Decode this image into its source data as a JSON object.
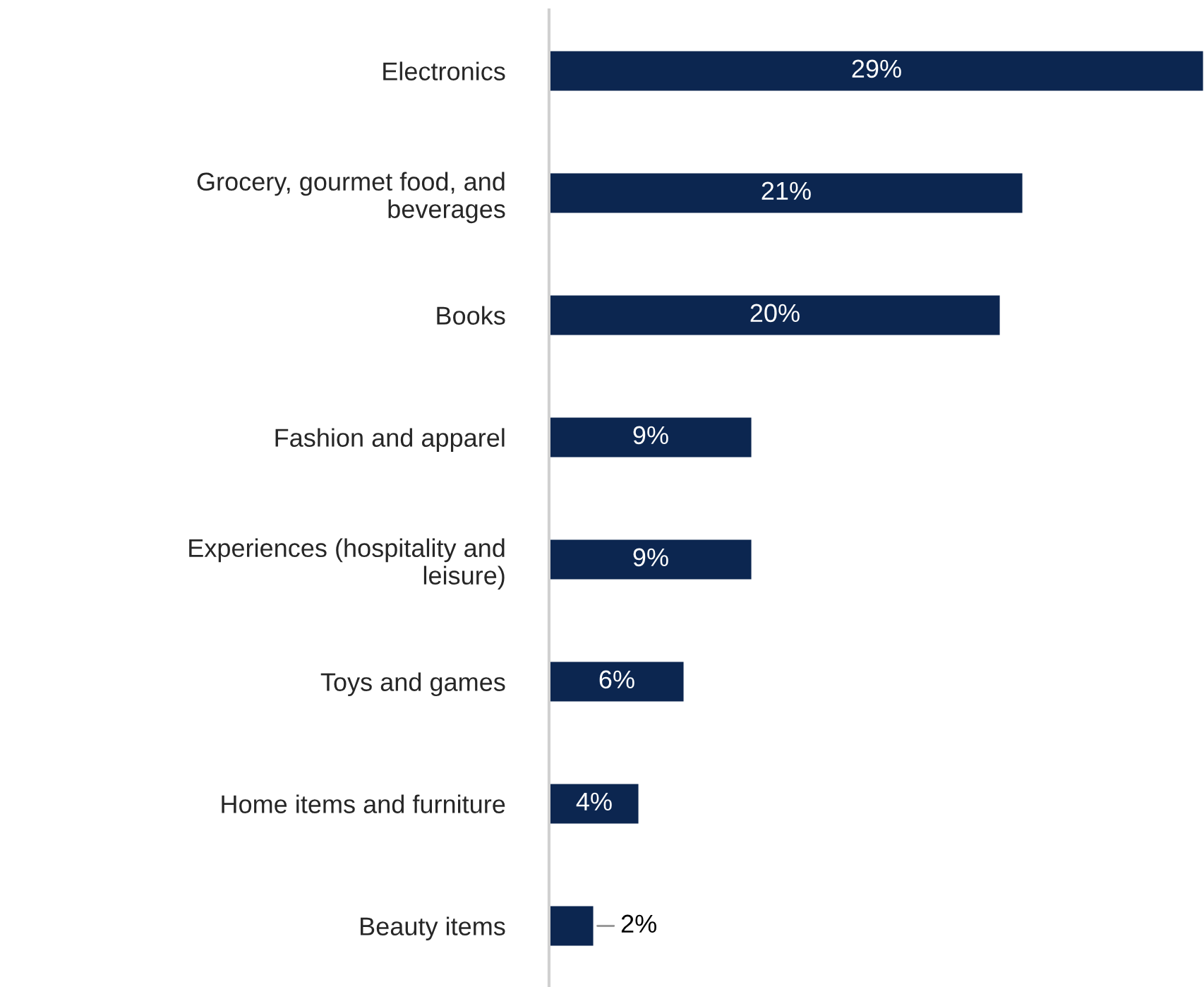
{
  "chart_data": {
    "type": "bar",
    "orientation": "horizontal",
    "categories": [
      "Electronics",
      "Grocery, gourmet food, and\nbeverages",
      "Books",
      "Fashion and apparel",
      "Experiences (hospitality and\nleisure)",
      "Toys and games",
      "Home items and furniture",
      "Beauty items"
    ],
    "series": [
      {
        "color": "#0c2650",
        "values": [
          29,
          21,
          20,
          9,
          9,
          6,
          4,
          2
        ],
        "value_labels": [
          "29%",
          "21%",
          "20%",
          "9%",
          "9%",
          "6%",
          "4%",
          "2%"
        ]
      }
    ],
    "tick_labels": "y",
    "grid": false,
    "legend": false
  }
}
